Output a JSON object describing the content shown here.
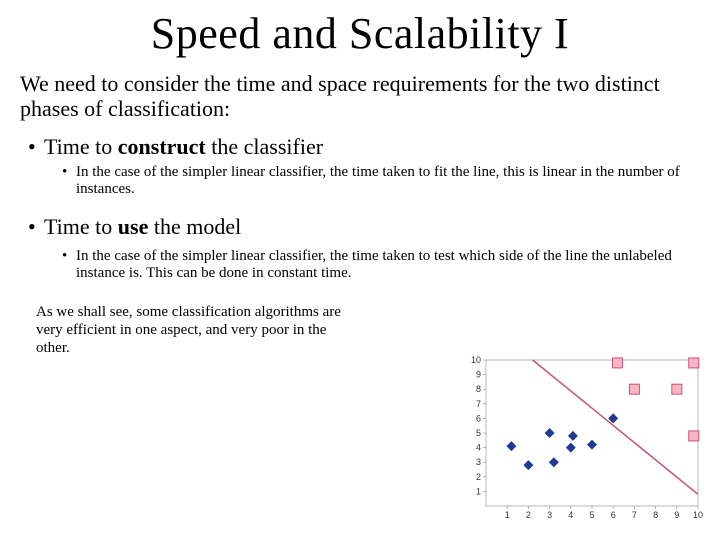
{
  "title": "Speed and Scalability I",
  "intro": "We need to consider the time and space requirements for the two distinct phases of classification:",
  "bullet1_pre": "Time to ",
  "bullet1_bold": "construct",
  "bullet1_post": " the classifier",
  "sub1": "In the case of the simpler linear classifier, the time taken to fit the line, this is linear in the number of instances.",
  "bullet2_pre": "Time to ",
  "bullet2_bold": "use",
  "bullet2_post": " the model",
  "sub2": "In the case of the simpler linear classifier, the time taken to test which side of the line the unlabeled instance is. This can be done in constant time.",
  "closing": "As we shall see, some classification algorithms are very efficient in one aspect, and very poor in the other.",
  "chart": {
    "type": "scatter",
    "xlim": [
      0,
      10
    ],
    "ylim": [
      0,
      10
    ],
    "xticks": [
      1,
      2,
      3,
      4,
      5,
      6,
      7,
      8,
      9,
      10
    ],
    "yticks": [
      1,
      2,
      3,
      4,
      5,
      6,
      7,
      8,
      9,
      10
    ],
    "background_color": "#ffffff",
    "axis_color": "#888888",
    "tick_font_size": 9,
    "blue_points": {
      "marker": "diamond",
      "color": "#1f3a93",
      "size": 5,
      "data": [
        [
          1.2,
          4.1
        ],
        [
          2.0,
          2.8
        ],
        [
          3.0,
          5.0
        ],
        [
          3.2,
          3.0
        ],
        [
          4.0,
          4.0
        ],
        [
          4.1,
          4.8
        ],
        [
          5.0,
          4.2
        ],
        [
          6.0,
          6.0
        ]
      ]
    },
    "pink_points": {
      "marker": "square",
      "fill": "#f7b6c2",
      "stroke": "#c94f7c",
      "size": 5,
      "data": [
        [
          6.2,
          9.8
        ],
        [
          7.0,
          8.0
        ],
        [
          9.0,
          8.0
        ],
        [
          9.8,
          9.8
        ],
        [
          9.8,
          4.8
        ]
      ]
    },
    "line": {
      "color": "#c94f7c",
      "width": 1.5,
      "x1": 2.2,
      "y1": 10.0,
      "x2": 10.0,
      "y2": 0.8
    }
  }
}
